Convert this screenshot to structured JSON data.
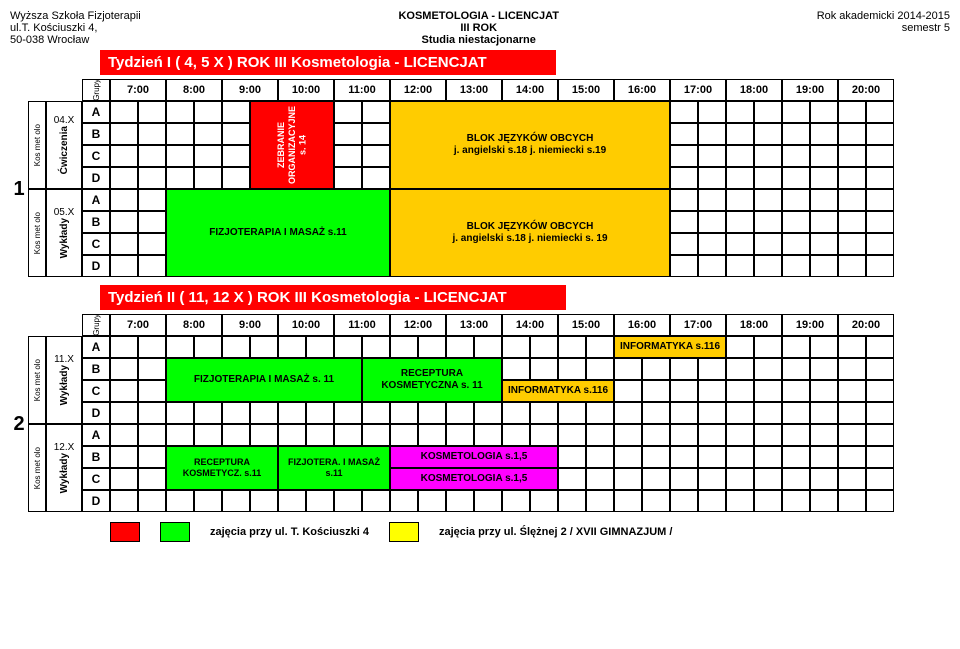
{
  "header": {
    "left1": "Wyższa Szkoła Fizjoterapii",
    "left2": "ul.T. Kościuszki 4,",
    "left3": "50-038 Wrocław",
    "center1": "KOSMETOLOGIA - LICENCJAT",
    "center2": "III ROK",
    "center3": "Studia niestacjonarne",
    "right1": "Rok akademicki 2014-2015",
    "right2": "semestr 5"
  },
  "title1": "Tydzień I ( 4,  5 X ) ROK III Kosmetologia - LICENCJAT",
  "title2": "Tydzień II ( 11, 12 X ) ROK III Kosmetologia - LICENCJAT",
  "times": [
    "7:00",
    "8:00",
    "9:00",
    "10:00",
    "11:00",
    "12:00",
    "13:00",
    "14:00",
    "15:00",
    "16:00",
    "17:00",
    "18:00",
    "19:00",
    "20:00"
  ],
  "groups": [
    "A",
    "B",
    "C",
    "D"
  ],
  "grupy_label": "Grupy",
  "weeknum1": "1",
  "weeknum2": "2",
  "sidemet": "Kos met olo",
  "day_labels": {
    "d04x": "04.X",
    "d05x": "05.X",
    "d11x": "11.X",
    "d12x": "12.X",
    "cwiczenia": "Ćwiczenia",
    "wyklady": "Wykłady"
  },
  "blocks": {
    "zebranie": "ZEBRANIE ORGANIZACYJNE s. 14",
    "blok1": "BLOK JĘZYKÓW OBCYCH",
    "blok1b": "j. angielski  s.18  j. niemiecki s.19",
    "fizjo_masaz": "FIZJOTERAPIA I MASAŻ s.11",
    "fizjo_masaz2": "FIZJOTERAPIA I MASAŻ s. 11",
    "blok2": "BLOK JĘZYKÓW OBCYCH",
    "blok2b": "j. angielski  s.18  j. niemiecki s. 19",
    "inf_a": "INFORMATYKA  s.116",
    "inf_bc": "INFORMATYKA  s.116",
    "receptura": "RECEPTURA KOSMETYCZNA s. 11",
    "recept_bc": "RECEPTURA KOSMETYCZ. s.11",
    "fizjotera_bc": "FIZJOTERA. I MASAŻ s.11",
    "kosme_b": "KOSMETOLOGIA  s.1,5",
    "kosme_c": "KOSMETOLOGIA  s.1,5"
  },
  "legend": {
    "red_label": "",
    "green_label": "zajęcia przy ul. T. Kościuszki 4",
    "yellow_label": "zajęcia przy ul. Ślężnej 2   / XVII GIMNAZJUM /"
  },
  "colors": {
    "orange": "#ffcc00",
    "green": "#00ff00",
    "red": "#ff0000",
    "yellow": "#ffff00",
    "pink": "#ff00ff"
  }
}
